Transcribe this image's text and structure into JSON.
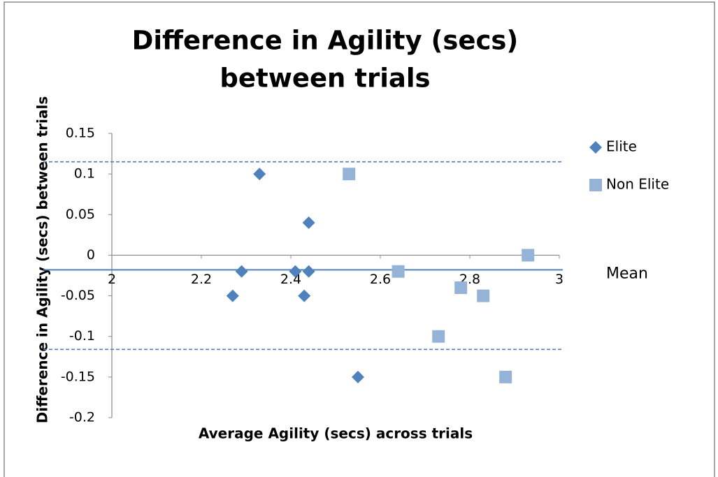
{
  "chart_data": {
    "type": "scatter",
    "title": [
      "Difference in Agility (secs)",
      "between trials"
    ],
    "x_label": "Average Agility (secs) across trials",
    "y_label": "Difference in Agility  (secs) between trials",
    "xlim": [
      2,
      3
    ],
    "xticks": [
      2,
      2.2,
      2.4,
      2.6,
      2.8,
      3
    ],
    "ylim": [
      -0.2,
      0.15
    ],
    "yticks": [
      0.15,
      0.1,
      0.05,
      0,
      -0.05,
      -0.1,
      -0.15,
      -0.2
    ],
    "grid": false,
    "legend": "right",
    "series": [
      {
        "name": "Elite",
        "color": "#4f81bd",
        "marker": "diamond",
        "x": [
          2.33,
          2.44,
          2.29,
          2.41,
          2.44,
          2.27,
          2.43,
          2.55
        ],
        "values": [
          0.1,
          0.04,
          -0.02,
          -0.02,
          -0.02,
          -0.05,
          -0.05,
          -0.15
        ]
      },
      {
        "name": "Non Elite",
        "color": "#95b3d7",
        "marker": "square",
        "x": [
          2.53,
          2.93,
          2.64,
          2.78,
          2.83,
          2.73,
          2.88
        ],
        "values": [
          0.1,
          0,
          -0.02,
          -0.04,
          -0.05,
          -0.1,
          -0.15
        ]
      }
    ],
    "lines": [
      {
        "value": 0.115,
        "style": "dashed",
        "color": "#4f81bd"
      },
      {
        "value": -0.018,
        "style": "solid",
        "color": "#4f81bd",
        "label": "Mean"
      },
      {
        "value": -0.116,
        "style": "dashed",
        "color": "#4f81bd"
      }
    ]
  }
}
